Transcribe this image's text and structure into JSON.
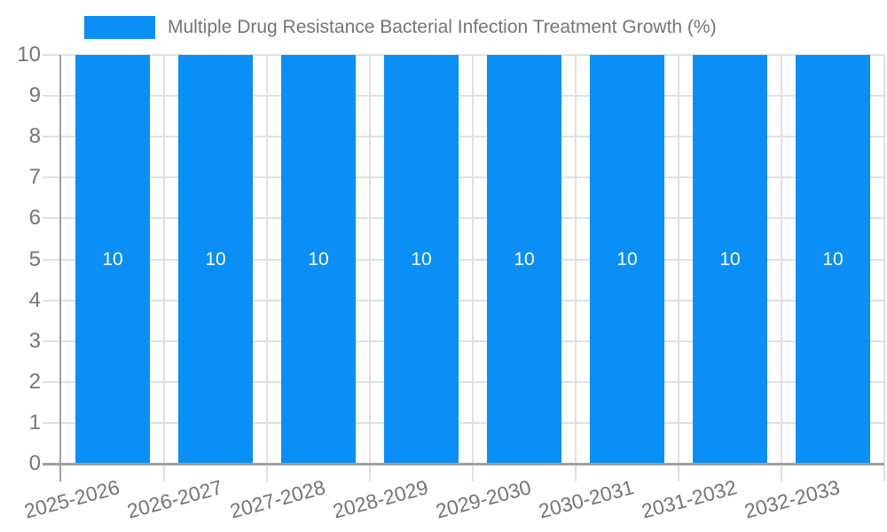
{
  "legend": {
    "label": "Multiple Drug Resistance Bacterial Infection Treatment Growth (%)"
  },
  "chart_data": {
    "type": "bar",
    "title": "Multiple Drug Resistance Bacterial Infection Treatment Growth (%)",
    "categories": [
      "2025-2026",
      "2026-2027",
      "2027-2028",
      "2028-2029",
      "2029-2030",
      "2030-2031",
      "2031-2032",
      "2032-2033"
    ],
    "values": [
      10,
      10,
      10,
      10,
      10,
      10,
      10,
      10
    ],
    "bar_value_labels": [
      "10",
      "10",
      "10",
      "10",
      "10",
      "10",
      "10",
      "10"
    ],
    "xlabel": "",
    "ylabel": "",
    "ylim": [
      0,
      10
    ],
    "yticks": [
      0,
      1,
      2,
      3,
      4,
      5,
      6,
      7,
      8,
      9,
      10
    ],
    "grid": true,
    "legend_position": "top-left",
    "colors": {
      "bar": "#0a8ff7",
      "grid": "#e0e0e0",
      "axis": "#a0a0a0",
      "tick_label": "#757575",
      "legend_label": "#757575",
      "bar_label": "#ffffff",
      "background": "#ffffff"
    }
  }
}
